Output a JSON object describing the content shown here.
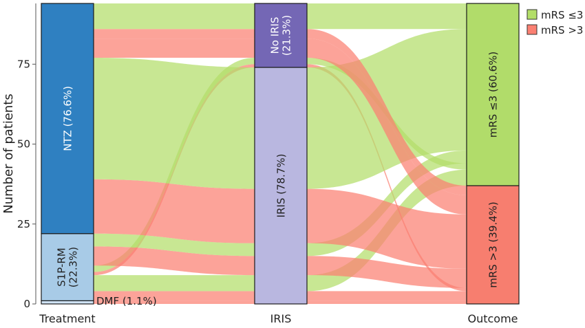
{
  "chart_data": {
    "type": "alluvial",
    "ylabel": "Number of patients",
    "y_ticks": [
      0,
      25,
      50,
      75
    ],
    "ylim": [
      0,
      94
    ],
    "axes": [
      "Treatment",
      "IRIS",
      "Outcome"
    ],
    "legend": {
      "position": "top-right",
      "entries": [
        {
          "label": "mRS ≤3",
          "color": "#b3de69"
        },
        {
          "label": "mRS >3",
          "color": "#fb8072"
        }
      ]
    },
    "nodes": {
      "Treatment": [
        {
          "id": "dmf",
          "label": "DMF (1.1%)",
          "count": 1,
          "color": "#cfe3f7"
        },
        {
          "id": "s1p",
          "label": "S1P-RM (22.3%)",
          "count": 21,
          "color": "#a8cbe7"
        },
        {
          "id": "ntz",
          "label": "NTZ (76.6%)",
          "count": 72,
          "color": "#2f80c1"
        }
      ],
      "IRIS": [
        {
          "id": "iris",
          "label": "IRIS (78.7%)",
          "count": 74,
          "color": "#b9b7e0"
        },
        {
          "id": "noiris",
          "label": "No IRIS (21.3%)",
          "count": 20,
          "color": "#7467b5"
        }
      ],
      "Outcome": [
        {
          "id": "bad",
          "label": "mRS >3 (39.4%)",
          "count": 37,
          "color": "#f77e6f"
        },
        {
          "id": "good",
          "label": "mRS ≤3 (60.6%)",
          "count": 57,
          "color": "#b1dc6a"
        }
      ]
    },
    "flows": [
      {
        "treatment": "dmf",
        "iris": "iris",
        "outcome": "bad",
        "count": 1
      },
      {
        "treatment": "s1p",
        "iris": "iris",
        "outcome": "bad",
        "count": 3
      },
      {
        "treatment": "s1p",
        "iris": "iris",
        "outcome": "good",
        "count": 5
      },
      {
        "treatment": "s1p",
        "iris": "noiris",
        "outcome": "bad",
        "count": 1
      },
      {
        "treatment": "s1p",
        "iris": "noiris",
        "outcome": "good",
        "count": 2
      },
      {
        "treatment": "s1p",
        "iris": "iris",
        "outcome": "bad",
        "count": 6
      },
      {
        "treatment": "s1p",
        "iris": "iris",
        "outcome": "good",
        "count": 4
      },
      {
        "treatment": "ntz",
        "iris": "iris",
        "outcome": "bad",
        "count": 17
      },
      {
        "treatment": "ntz",
        "iris": "iris",
        "outcome": "good",
        "count": 38
      },
      {
        "treatment": "ntz",
        "iris": "noiris",
        "outcome": "bad",
        "count": 6
      },
      {
        "treatment": "ntz",
        "iris": "noiris",
        "outcome": "bad",
        "count": 3
      },
      {
        "treatment": "ntz",
        "iris": "noiris",
        "outcome": "good",
        "count": 8
      }
    ]
  }
}
